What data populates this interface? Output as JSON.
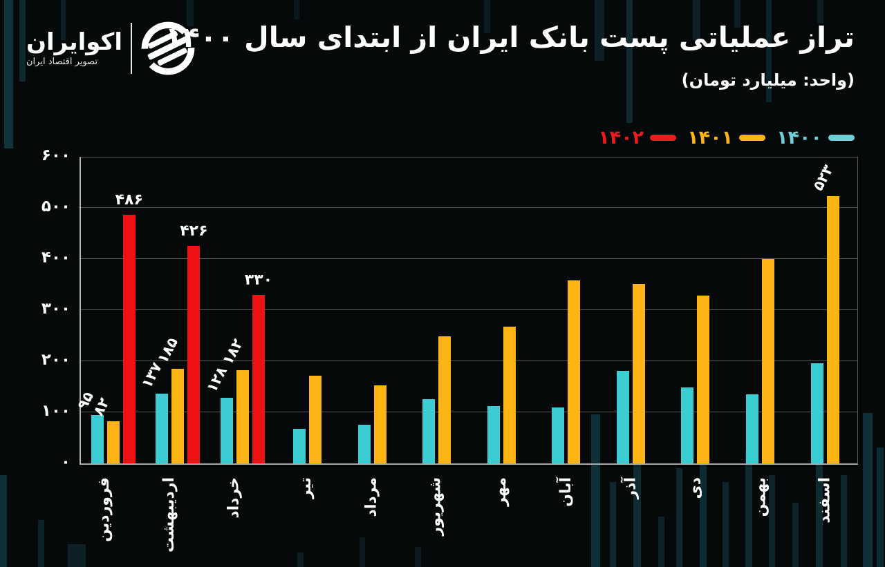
{
  "header": {
    "title": "تراز عملیاتی پست بانک ایران از ابتدای سال ۱۴۰۰",
    "unit_note": "(واحد: میلیارد تومان)",
    "logo": {
      "name": "اکوایران",
      "tagline": "تصویر اقتصاد ایران"
    }
  },
  "legend": [
    {
      "label": "۱۴۰۲",
      "color": "#ec1c1c"
    },
    {
      "label": "۱۴۰۱",
      "color": "#fcb515"
    },
    {
      "label": "۱۴۰۰",
      "color": "#6fcfd8"
    }
  ],
  "colors": {
    "background": "#060909",
    "bar_1400": "#3ccdd3",
    "bar_1401": "#fcb515",
    "bar_1402": "#ee1212",
    "gridline": "#575757",
    "text": "#ffffff"
  },
  "chart_data": {
    "type": "bar",
    "title": "تراز عملیاتی پست بانک ایران از ابتدای سال ۱۴۰۰",
    "unit": "میلیارد تومان",
    "categories": [
      "فروردین",
      "اردیبهشت",
      "خرداد",
      "تیر",
      "مرداد",
      "شهریور",
      "مهر",
      "آبان",
      "آذر",
      "دی",
      "بهمن",
      "اسفند"
    ],
    "series": [
      {
        "name": "۱۴۰۰",
        "year": 1400,
        "color": "#3ccdd3",
        "label_style": "rotated",
        "values": [
          95,
          137,
          128,
          67,
          75,
          126,
          112,
          110,
          181,
          149,
          135,
          196
        ],
        "labels": [
          "۹۵",
          "۱۳۷",
          "۱۲۸",
          "",
          "",
          "",
          "",
          "",
          "",
          "",
          "",
          ""
        ]
      },
      {
        "name": "۱۴۰۱",
        "year": 1401,
        "color": "#fcb515",
        "label_style": "rotated",
        "values": [
          82,
          185,
          182,
          172,
          153,
          248,
          267,
          358,
          352,
          328,
          400,
          523
        ],
        "labels": [
          "۸۲",
          "۱۸۵",
          "۱۸۲",
          "",
          "",
          "",
          "",
          "",
          "",
          "",
          "",
          "۵۲۳"
        ]
      },
      {
        "name": "۱۴۰۲",
        "year": 1402,
        "color": "#ee1212",
        "label_style": "horizontal",
        "values": [
          486,
          426,
          330,
          null,
          null,
          null,
          null,
          null,
          null,
          null,
          null,
          null
        ],
        "labels": [
          "۴۸۶",
          "۴۲۶",
          "۳۳۰",
          "",
          "",
          "",
          "",
          "",
          "",
          "",
          "",
          ""
        ]
      }
    ],
    "ylim": [
      0,
      600
    ],
    "ytick_values": [
      0,
      100,
      200,
      300,
      400,
      500,
      600
    ],
    "ytick_labels": [
      "۰",
      "۱۰۰",
      "۲۰۰",
      "۳۰۰",
      "۴۰۰",
      "۵۰۰",
      "۶۰۰"
    ],
    "grid": "horizontal",
    "legend_position": "top-right"
  }
}
